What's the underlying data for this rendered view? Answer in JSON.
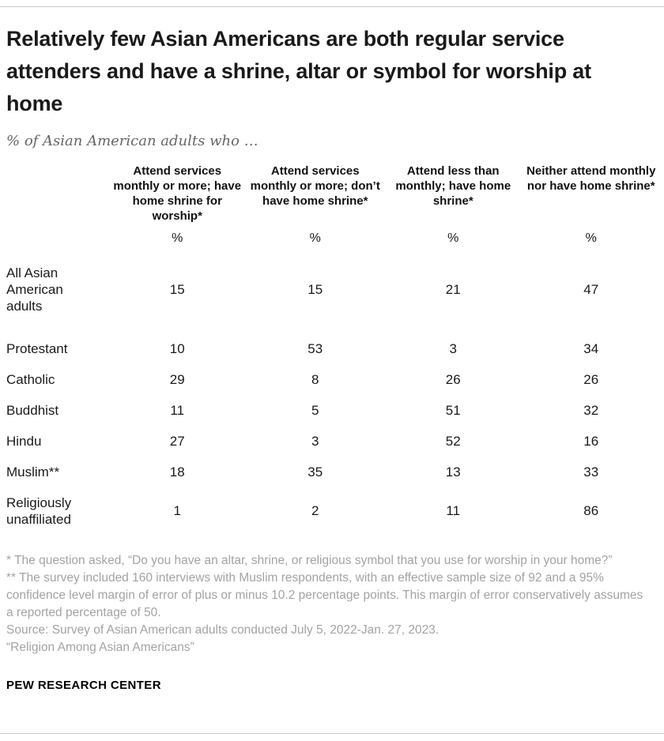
{
  "chart_data": {
    "type": "table",
    "title": "Relatively few Asian Americans are both regular service attenders and have a shrine, altar or symbol for worship at home",
    "subtitle": "% of Asian American adults who …",
    "columns": [
      "Attend services monthly or more; have home shrine for worship*",
      "Attend services monthly or more; don’t have home shrine*",
      "Attend less than monthly; have home shrine*",
      "Neither attend monthly nor have home shrine*"
    ],
    "unit_row": [
      "%",
      "%",
      "%",
      "%"
    ],
    "rows": [
      {
        "label": "All Asian American adults",
        "values": [
          15,
          15,
          21,
          47
        ]
      },
      {
        "label": "Protestant",
        "values": [
          10,
          53,
          3,
          34
        ]
      },
      {
        "label": "Catholic",
        "values": [
          29,
          8,
          26,
          26
        ]
      },
      {
        "label": "Buddhist",
        "values": [
          11,
          5,
          51,
          32
        ]
      },
      {
        "label": "Hindu",
        "values": [
          27,
          3,
          52,
          16
        ]
      },
      {
        "label": "Muslim**",
        "values": [
          18,
          35,
          13,
          33
        ]
      },
      {
        "label": "Religiously unaffiliated",
        "values": [
          1,
          2,
          11,
          86
        ]
      }
    ],
    "layout": {
      "grid": false,
      "legend": "none"
    }
  },
  "notes": {
    "note1": "* The question asked, “Do you have an altar, shrine, or religious symbol that you use for worship in your home?”",
    "note2": "** The survey included 160 interviews with Muslim respondents, with an effective sample size of 92 and a 95% confidence level margin of error of plus or minus 10.2 percentage points. This margin of error conservatively assumes a reported percentage of 50.",
    "source": "Source: Survey of Asian American adults conducted July 5, 2022-Jan. 27, 2023.",
    "report": "“Religion Among Asian Americans”"
  },
  "footer": {
    "brand": "PEW RESEARCH CENTER"
  },
  "colors": {
    "rule": "#c9c9c9",
    "note_gray": "#a3a3a3",
    "text": "#1a1a1a"
  }
}
